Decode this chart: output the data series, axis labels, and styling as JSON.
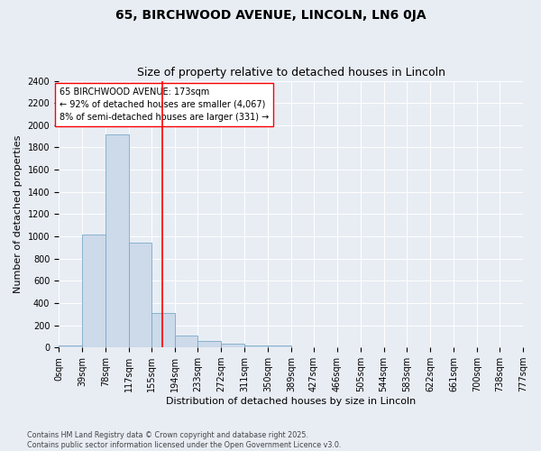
{
  "title_line1": "65, BIRCHWOOD AVENUE, LINCOLN, LN6 0JA",
  "title_line2": "Size of property relative to detached houses in Lincoln",
  "xlabel": "Distribution of detached houses by size in Lincoln",
  "ylabel": "Number of detached properties",
  "bar_color": "#ccdaea",
  "bar_edge_color": "#7aaac8",
  "vline_x": 173,
  "vline_color": "red",
  "annotation_text": "65 BIRCHWOOD AVENUE: 173sqm\n← 92% of detached houses are smaller (4,067)\n8% of semi-detached houses are larger (331) →",
  "annotation_box_color": "white",
  "annotation_box_edge_color": "red",
  "bins": [
    0,
    39,
    78,
    117,
    155,
    194,
    233,
    272,
    311,
    350,
    389,
    427,
    466,
    505,
    544,
    583,
    622,
    661,
    700,
    738,
    777
  ],
  "counts": [
    20,
    1020,
    1920,
    940,
    310,
    110,
    55,
    35,
    20,
    20,
    0,
    0,
    0,
    0,
    0,
    0,
    0,
    0,
    0,
    0
  ],
  "ylim": [
    0,
    2400
  ],
  "yticks": [
    0,
    200,
    400,
    600,
    800,
    1000,
    1200,
    1400,
    1600,
    1800,
    2000,
    2200,
    2400
  ],
  "background_color": "#e8edf4",
  "footnote": "Contains HM Land Registry data © Crown copyright and database right 2025.\nContains public sector information licensed under the Open Government Licence v3.0.",
  "title_fontsize": 10,
  "subtitle_fontsize": 9,
  "label_fontsize": 8,
  "tick_fontsize": 7,
  "annot_fontsize": 7
}
